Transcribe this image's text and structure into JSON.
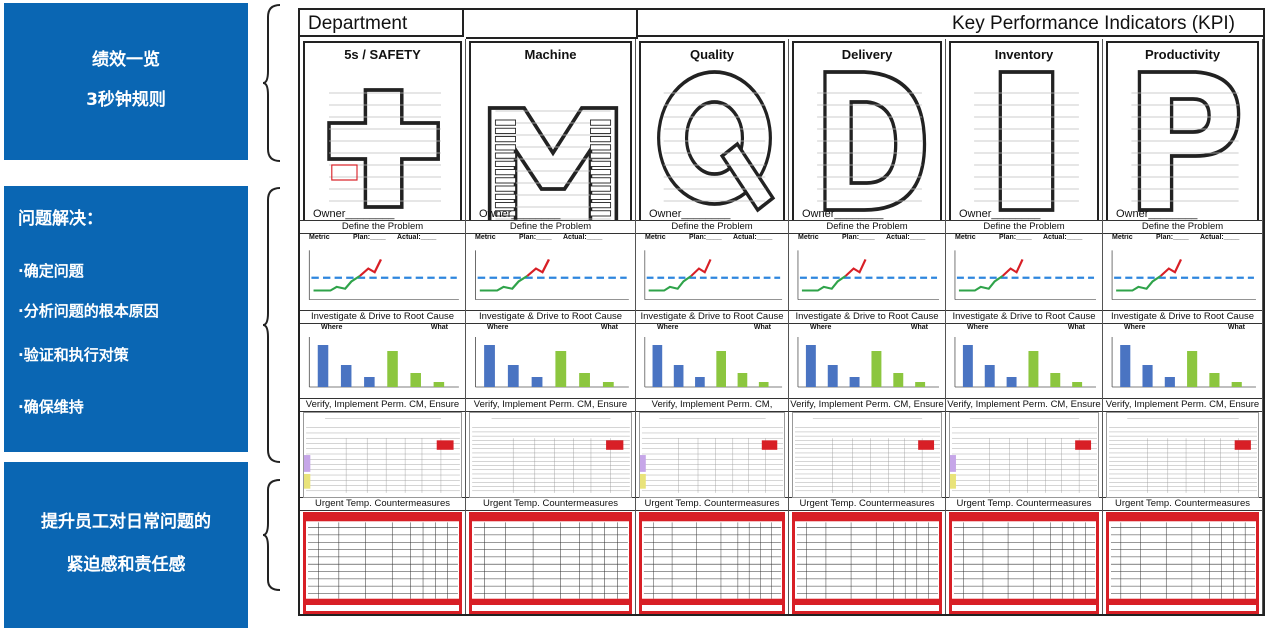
{
  "sidebar": {
    "box1": {
      "line1": "绩效一览",
      "line2": "3秒钟规则"
    },
    "box2": {
      "title": "问题解决：",
      "bullets": [
        "·确定问题",
        "·分析问题的根本原因",
        "·验证和执行对策",
        "·确保维持"
      ]
    },
    "box3": {
      "line1": "提升员工对日常问题的",
      "line2": "紧迫感和责任感"
    }
  },
  "board": {
    "department_label": "Department",
    "kpi_label": "Key Performance Indicators (KPI)",
    "owner_label": "Owner",
    "bands": {
      "define": "Define the Problem",
      "investigate": "Investigate & Drive to Root Cause",
      "verify": "Verify, Implement Perm. CM, Ensure",
      "urgent": "Urgent Temp. Countermeasures"
    },
    "chart_labels": {
      "metric": "Metric",
      "plan": "Plan:____",
      "actual": "Actual:____",
      "where": "Where",
      "what": "What"
    },
    "columns": [
      {
        "title": "5s / SAFETY",
        "letter": "+"
      },
      {
        "title": "Machine",
        "letter": "M"
      },
      {
        "title": "Quality",
        "letter": "Q"
      },
      {
        "title": "Delivery",
        "letter": "D"
      },
      {
        "title": "Inventory",
        "letter": "I"
      },
      {
        "title": "Productivity",
        "letter": "P"
      }
    ],
    "colors": {
      "accent_blue": "#0a66b3",
      "plan_line": "#2e86de",
      "trend_green": "#2fa34a",
      "trend_red": "#d81f26",
      "bar_blue": "#4a74c2",
      "bar_green": "#8cc63f"
    }
  }
}
